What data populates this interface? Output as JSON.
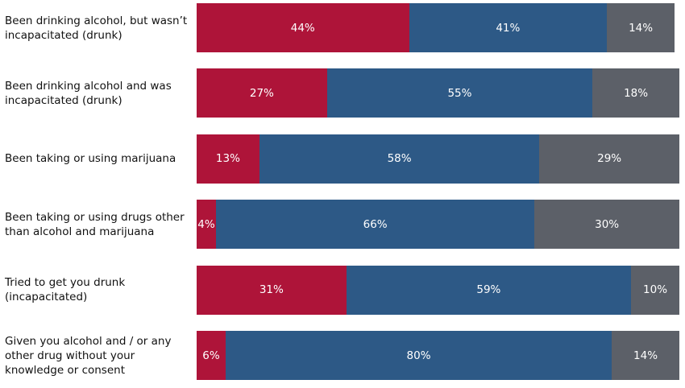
{
  "chart_data": {
    "type": "stacked-bar",
    "categories": [
      "Been drinking alcohol, but wasn’t incapacitated (drunk)",
      "Been drinking alcohol and was incapacitated (drunk)",
      "Been taking or using marijuana",
      "Been taking or using drugs other than alcohol and marijuana",
      "Tried to get you drunk (incapacitated)",
      "Given you alcohol and / or any other drug without your knowledge or consent"
    ],
    "series": [
      {
        "color": "#ae1439",
        "values": [
          44,
          27,
          13,
          4,
          31,
          6
        ],
        "value_labels": [
          "44%",
          "27%",
          "13%",
          "4%",
          "31%",
          "6%"
        ]
      },
      {
        "color": "#2d5986",
        "values": [
          41,
          55,
          58,
          66,
          59,
          80
        ],
        "value_labels": [
          "41%",
          "55%",
          "58%",
          "66%",
          "59%",
          "80%"
        ]
      },
      {
        "color": "#5c6068",
        "values": [
          14,
          18,
          29,
          30,
          10,
          14
        ],
        "value_labels": [
          "14%",
          "18%",
          "29%",
          "30%",
          "10%",
          "14%"
        ]
      }
    ],
    "xlim": [
      0,
      100
    ]
  }
}
